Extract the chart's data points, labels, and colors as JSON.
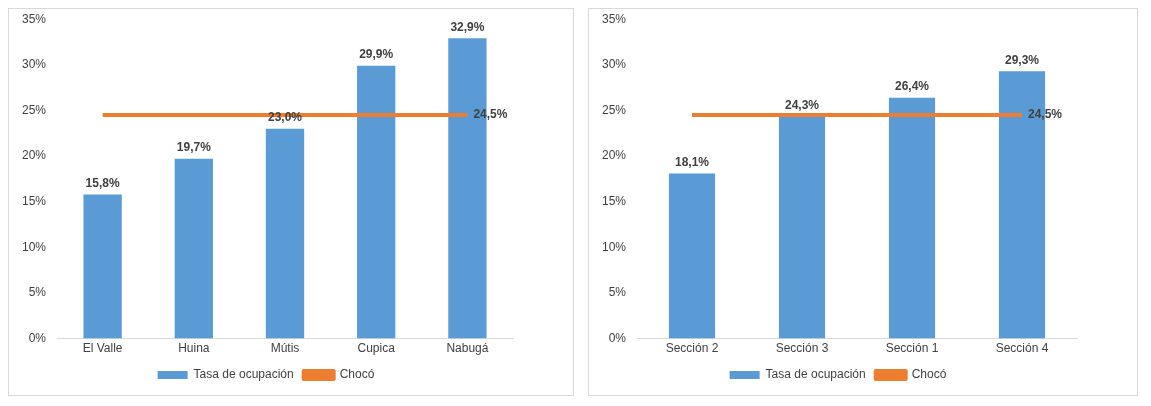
{
  "chart_data": [
    {
      "type": "bar",
      "categories": [
        "El Valle",
        "Huina",
        "Mútis",
        "Cupica",
        "Nabugá"
      ],
      "ylim": [
        0,
        35
      ],
      "yticks": [
        {
          "value": 0,
          "label": "0%"
        },
        {
          "value": 5,
          "label": "5%"
        },
        {
          "value": 10,
          "label": "10%"
        },
        {
          "value": 15,
          "label": "15%"
        },
        {
          "value": 20,
          "label": "20%"
        },
        {
          "value": 25,
          "label": "25%"
        },
        {
          "value": 30,
          "label": "30%"
        },
        {
          "value": 35,
          "label": "35%"
        }
      ],
      "legend": "bottom",
      "marker": "none",
      "series": [
        {
          "name": "Tasa de ocupación",
          "color": "#5b9bd5",
          "values": [
            15.8,
            19.7,
            23.0,
            29.9,
            32.9
          ],
          "value_labels": [
            "15,8%",
            "19,7%",
            "23,0%",
            "29,9%",
            "32,9%"
          ]
        },
        {
          "name": "Chocó",
          "type": "line",
          "color": "#ed7d31",
          "values": [
            24.5,
            24.5,
            24.5,
            24.5,
            24.5
          ],
          "value_labels": [
            null,
            null,
            null,
            null,
            "24,5%"
          ]
        }
      ]
    },
    {
      "type": "bar",
      "categories": [
        "Sección 2",
        "Sección 3",
        "Sección 1",
        "Sección 4"
      ],
      "ylim": [
        0,
        35
      ],
      "yticks": [
        {
          "value": 0,
          "label": "0%"
        },
        {
          "value": 5,
          "label": "5%"
        },
        {
          "value": 10,
          "label": "10%"
        },
        {
          "value": 15,
          "label": "15%"
        },
        {
          "value": 20,
          "label": "20%"
        },
        {
          "value": 25,
          "label": "25%"
        },
        {
          "value": 30,
          "label": "30%"
        },
        {
          "value": 35,
          "label": "35%"
        }
      ],
      "legend": "bottom",
      "marker": "none",
      "series": [
        {
          "name": "Tasa de ocupación",
          "color": "#5b9bd5",
          "values": [
            18.1,
            24.3,
            26.4,
            29.3
          ],
          "value_labels": [
            "18,1%",
            "24,3%",
            "26,4%",
            "29,3%"
          ]
        },
        {
          "name": "Chocó",
          "type": "line",
          "color": "#ed7d31",
          "values": [
            24.5,
            24.5,
            24.5,
            24.5
          ],
          "value_labels": [
            null,
            null,
            null,
            "24,5%"
          ]
        }
      ]
    }
  ]
}
